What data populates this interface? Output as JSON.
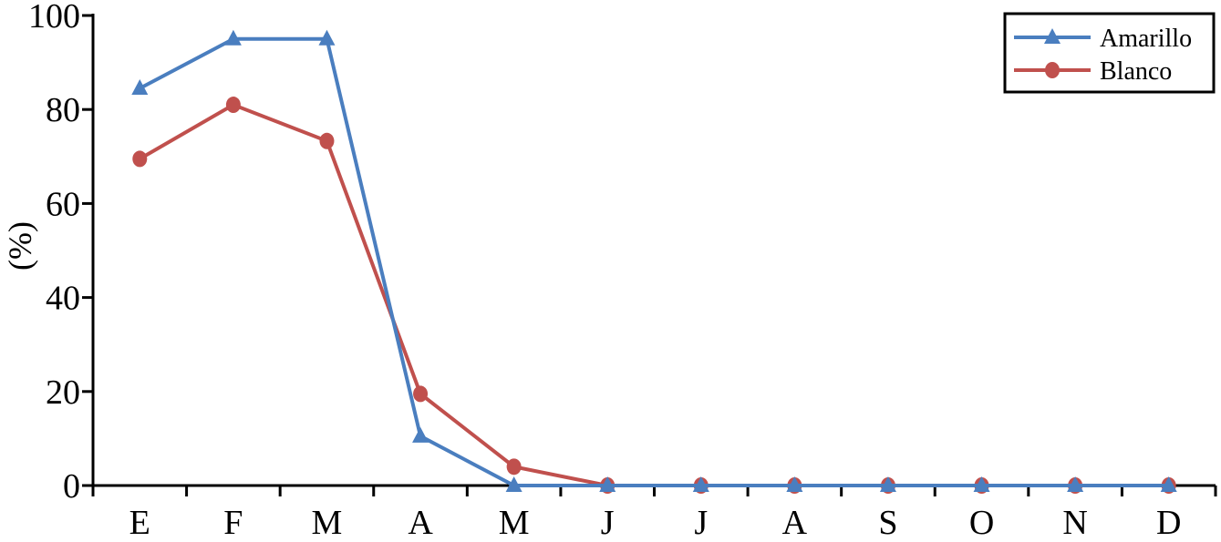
{
  "chart_data": {
    "type": "line",
    "title": "",
    "xlabel": "",
    "ylabel": "(%)",
    "categories": [
      "E",
      "F",
      "M",
      "A",
      "M",
      "J",
      "J",
      "A",
      "S",
      "O",
      "N",
      "D"
    ],
    "ylim": [
      0,
      100
    ],
    "yticks": [
      0,
      20,
      40,
      60,
      80,
      100
    ],
    "grid": false,
    "legend_position": "top-right",
    "series": [
      {
        "name": "Amarillo",
        "color": "#4a7ebf",
        "marker": "triangle",
        "values": [
          84.5,
          95,
          95,
          10.5,
          0,
          0,
          0,
          0,
          0,
          0,
          0,
          0
        ]
      },
      {
        "name": "Blanco",
        "color": "#c0504d",
        "marker": "circle",
        "values": [
          69.5,
          81,
          73.3,
          19.5,
          4,
          0,
          0,
          0,
          0,
          0,
          0,
          0
        ]
      }
    ]
  }
}
